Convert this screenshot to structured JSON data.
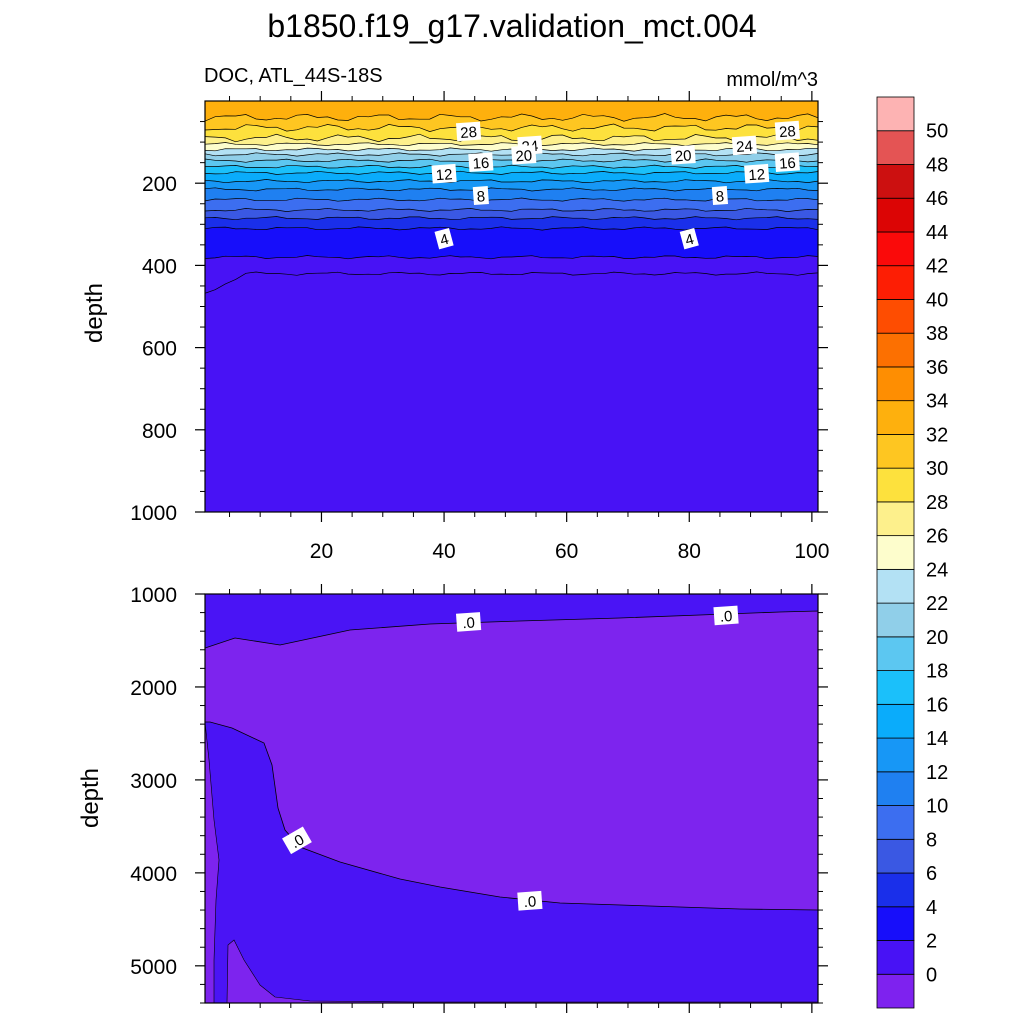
{
  "figure": {
    "title": "b1850.f19_g17.validation_mct.004",
    "left_label": "DOC, ATL_44S-18S",
    "units": "mmol/m^3"
  },
  "chart_data": [
    {
      "type": "contour",
      "panel": "upper",
      "ylabel": "depth",
      "xlim": [
        1,
        101
      ],
      "ylim": [
        1000,
        0
      ],
      "x_ticks": [
        "20",
        "40",
        "60",
        "80",
        "100"
      ],
      "y_ticks": [
        "200",
        "400",
        "600",
        "800",
        "1000"
      ],
      "contour_levels": [
        0,
        2,
        4,
        6,
        8,
        10,
        12,
        14,
        16,
        18,
        20,
        22,
        24,
        26,
        28,
        30,
        32
      ],
      "surface_value": 32,
      "contour_depths_m": [
        420,
        380,
        310,
        285,
        265,
        240,
        215,
        195,
        175,
        160,
        145,
        130,
        118,
        105,
        90,
        65,
        40
      ],
      "contour_labels": [
        {
          "text": "28",
          "x": 44,
          "y": 74
        },
        {
          "text": "24",
          "x": 54,
          "y": 108
        },
        {
          "text": "20",
          "x": 53,
          "y": 131
        },
        {
          "text": "16",
          "x": 46,
          "y": 149
        },
        {
          "text": "12",
          "x": 40,
          "y": 177
        },
        {
          "text": "8",
          "x": 46,
          "y": 230
        },
        {
          "text": "4",
          "x": 40,
          "y": 335
        },
        {
          "text": "28",
          "x": 96,
          "y": 72
        },
        {
          "text": "24",
          "x": 89,
          "y": 108
        },
        {
          "text": "20",
          "x": 79,
          "y": 131
        },
        {
          "text": "16",
          "x": 96,
          "y": 149
        },
        {
          "text": "12",
          "x": 91,
          "y": 177
        },
        {
          "text": "8",
          "x": 85,
          "y": 230
        },
        {
          "text": "4",
          "x": 80,
          "y": 335
        }
      ]
    },
    {
      "type": "contour",
      "panel": "lower",
      "ylabel": "depth",
      "ylim": [
        1000,
        5400
      ],
      "y_ticks": [
        "1000",
        "2000",
        "3000",
        "4000",
        "5000"
      ],
      "regions": [
        {
          "range": "0-2",
          "color": "#4a14f5"
        },
        {
          "range": "<0",
          "color": "#7d24ee"
        }
      ],
      "contour_labels": [
        {
          "text": ".0",
          "x": 44,
          "y": 1300
        },
        {
          "text": ".0",
          "x": 86,
          "y": 1230
        },
        {
          "text": ".0",
          "x": 16,
          "y": 3650
        },
        {
          "text": ".0",
          "x": 54,
          "y": 4300
        }
      ]
    }
  ],
  "colorbar": {
    "labels": [
      "0",
      "2",
      "4",
      "6",
      "8",
      "10",
      "12",
      "14",
      "16",
      "18",
      "20",
      "22",
      "24",
      "26",
      "28",
      "30",
      "32",
      "34",
      "36",
      "38",
      "40",
      "42",
      "44",
      "46",
      "48",
      "50"
    ],
    "colors": [
      "#7e22ef",
      "#4812f5",
      "#170efa",
      "#1a2fea",
      "#3a58e3",
      "#3c6ef0",
      "#1f80f1",
      "#1797f6",
      "#0aacfb",
      "#1bc0fa",
      "#5cc7f1",
      "#90cfe9",
      "#b3e1f4",
      "#fdfdcc",
      "#fdf08c",
      "#fde13d",
      "#fec621",
      "#feb00d",
      "#fe8e02",
      "#fc7001",
      "#fe4d01",
      "#fd1e04",
      "#fa0a0a",
      "#dc0505",
      "#cc1010",
      "#e45454",
      "#fdb3b3"
    ]
  }
}
